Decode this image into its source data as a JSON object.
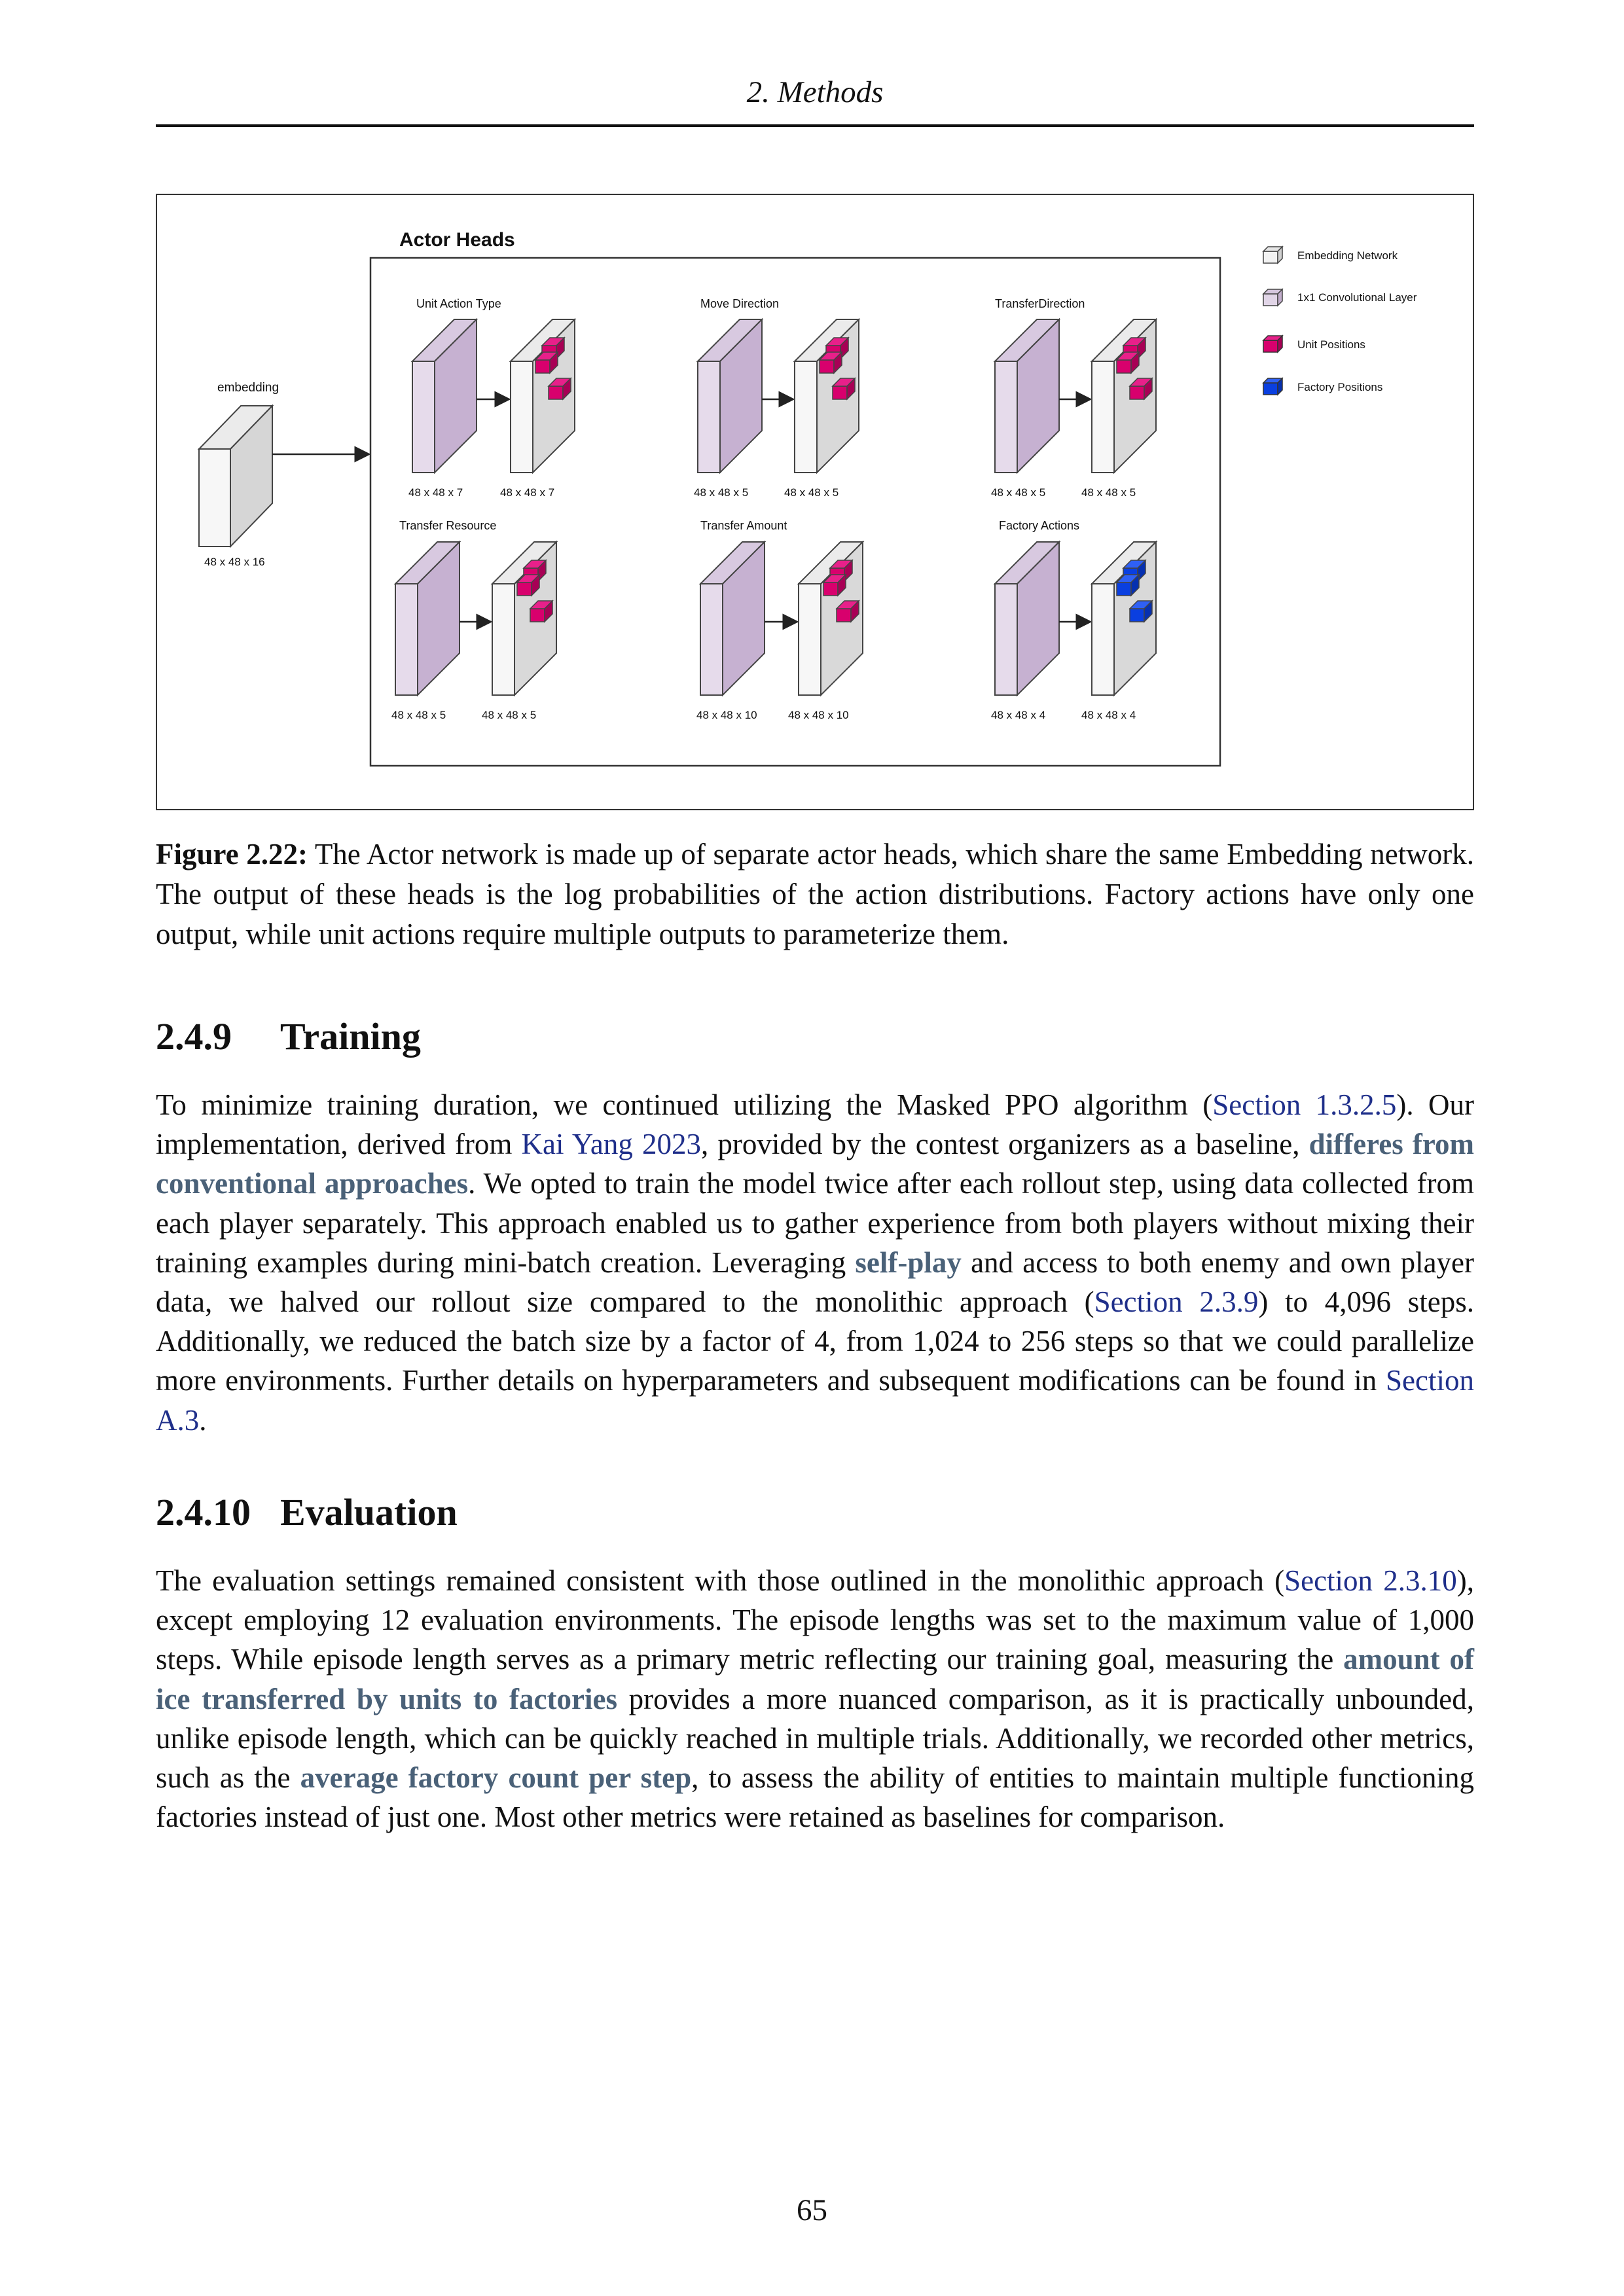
{
  "header": {
    "running_title": "2. Methods"
  },
  "figure": {
    "panel_title": "Actor Heads",
    "embedding": {
      "label": "embedding",
      "dims": "48 x 48 x 16"
    },
    "heads": [
      {
        "title": "Unit Action Type",
        "in_dims": "48 x 48 x 7",
        "out_dims": "48 x 48 x 7",
        "marker": "unit"
      },
      {
        "title": "Move Direction",
        "in_dims": "48 x 48 x 5",
        "out_dims": "48 x 48 x 5",
        "marker": "unit"
      },
      {
        "title": "TransferDirection",
        "in_dims": "48 x 48 x 5",
        "out_dims": "48 x 48 x 5",
        "marker": "unit"
      },
      {
        "title": "Transfer Resource",
        "in_dims": "48 x 48 x 5",
        "out_dims": "48 x 48 x 5",
        "marker": "unit"
      },
      {
        "title": "Transfer Amount",
        "in_dims": "48 x 48 x 10",
        "out_dims": "48 x 48 x 10",
        "marker": "unit"
      },
      {
        "title": "Factory Actions",
        "in_dims": "48 x 48 x 4",
        "out_dims": "48 x 48 x 4",
        "marker": "factory"
      }
    ],
    "legend": [
      {
        "label": "Embedding Network",
        "color": "#f2f2f2"
      },
      {
        "label": "1x1 Convolutional Layer",
        "color": "#e1d5e7"
      },
      {
        "label": "Unit Positions",
        "color": "#d8006d"
      },
      {
        "label": "Factory Positions",
        "color": "#0a3fe0"
      }
    ],
    "caption_label": "Figure 2.22:",
    "caption_text": " The Actor network is made up of separate actor heads, which share the same Embedding network. The output of these heads is the log probabilities of the action distributions. Factory actions have only one output, while unit actions require multiple outputs to parameterize them."
  },
  "sections": {
    "training": {
      "number": "2.4.9",
      "title": "Training",
      "t1": "To minimize training duration, we continued utilizing the Masked PPO algorithm (",
      "l1": "Section 1.3.2.5",
      "t2": "). Our implementation, derived from ",
      "l2": "Kai Yang 2023",
      "t3": ", provided by the contest organizers as a baseline, ",
      "k1": "differes from conventional approaches",
      "t4": ". We opted to train the model twice after each rollout step, using data collected from each player separately. This approach enabled us to gather experience from both players without mixing their training examples during mini-batch creation. Leveraging ",
      "k2": "self-play",
      "t5": " and access to both enemy and own player data, we halved our rollout size compared to the monolithic approach (",
      "l3": "Section 2.3.9",
      "t6": ") to 4,096 steps. Additionally, we reduced the batch size by a factor of 4, from 1,024 to 256 steps so that we could parallelize more environments. Further details on hyperparameters and subsequent modifications can be found in ",
      "l4": "Section A.3",
      "t7": "."
    },
    "evaluation": {
      "number": "2.4.10",
      "title": "Evaluation",
      "t1": "The evaluation settings remained consistent with those outlined in the monolithic approach (",
      "l1": "Section 2.3.10",
      "t2": "), except employing 12 evaluation environments. The episode lengths was set to the maximum value of 1,000 steps. While episode length serves as a primary metric reflecting our training goal, measuring the ",
      "k1": "amount of ice transferred by units to factories",
      "t3": " provides a more nuanced comparison, as it is practically unbounded, unlike episode length, which can be quickly reached in multiple trials. Additionally, we recorded other metrics, such as the ",
      "k2": "average factory count per step",
      "t4": ", to assess the ability of entities to maintain multiple functioning factories instead of just one. Most other metrics were retained as baselines for comparison."
    }
  },
  "page_number": "65"
}
